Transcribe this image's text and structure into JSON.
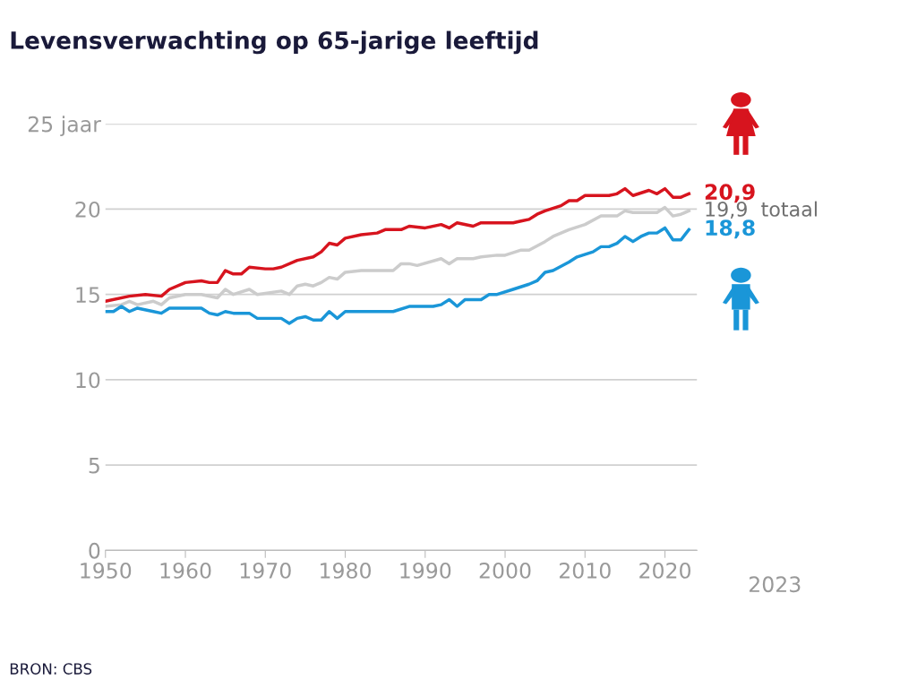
{
  "chart_data": {
    "type": "line",
    "title": "Levensverwachting op 65-jarige leeftijd",
    "xlim": [
      1950,
      2024
    ],
    "xticks": [
      1950,
      1960,
      1970,
      1980,
      1990,
      2000,
      2010,
      2020
    ],
    "ylim": [
      0,
      25
    ],
    "yticks": [
      0,
      5,
      10,
      15,
      20,
      {
        "value": 25,
        "label": "25 jaar"
      }
    ],
    "grid": "y",
    "legend": false,
    "marker": "none",
    "line_style": "solid",
    "series": [
      {
        "color": "#d7141e",
        "x": [
          1950,
          1953,
          1955,
          1957,
          1958,
          1960,
          1962,
          1963,
          1964,
          1965,
          1966,
          1967,
          1968,
          1970,
          1971,
          1972,
          1974,
          1976,
          1977,
          1978,
          1979,
          1980,
          1982,
          1984,
          1985,
          1987,
          1988,
          1990,
          1992,
          1993,
          1994,
          1996,
          1997,
          2001,
          2002,
          2003,
          2004,
          2005,
          2007,
          2008,
          2009,
          2010,
          2013,
          2014,
          2015,
          2016,
          2018,
          2019,
          2020,
          2021,
          2022,
          2023
        ],
        "values": [
          14.6,
          14.9,
          15.0,
          14.9,
          15.3,
          15.7,
          15.8,
          15.7,
          15.7,
          16.4,
          16.2,
          16.2,
          16.6,
          16.5,
          16.5,
          16.6,
          17.0,
          17.2,
          17.5,
          18.0,
          17.9,
          18.3,
          18.5,
          18.6,
          18.8,
          18.8,
          19.0,
          18.9,
          19.1,
          18.9,
          19.2,
          19.0,
          19.2,
          19.2,
          19.3,
          19.4,
          19.7,
          19.9,
          20.2,
          20.5,
          20.5,
          20.8,
          20.8,
          20.9,
          21.2,
          20.8,
          21.1,
          20.9,
          21.2,
          20.7,
          20.7,
          20.9
        ],
        "value_labels": [
          null,
          null,
          null,
          null,
          null,
          null,
          null,
          null,
          null,
          null,
          null,
          null,
          null,
          null,
          null,
          null,
          null,
          null,
          null,
          null,
          null,
          null,
          null,
          null,
          null,
          null,
          null,
          null,
          null,
          null,
          null,
          null,
          null,
          null,
          null,
          null,
          null,
          null,
          null,
          null,
          null,
          null,
          null,
          null,
          null,
          null,
          null,
          null,
          null,
          null,
          null,
          "20,9"
        ]
      },
      {
        "name": "totaal",
        "color": "#cccccc",
        "x": [
          1950,
          1952,
          1953,
          1954,
          1956,
          1957,
          1958,
          1960,
          1962,
          1964,
          1965,
          1966,
          1968,
          1969,
          1972,
          1973,
          1974,
          1975,
          1976,
          1977,
          1978,
          1979,
          1980,
          1982,
          1986,
          1987,
          1988,
          1989,
          1992,
          1993,
          1994,
          1996,
          1997,
          1999,
          2000,
          2002,
          2003,
          2005,
          2006,
          2008,
          2010,
          2012,
          2014,
          2015,
          2016,
          2017,
          2018,
          2019,
          2020,
          2021,
          2022,
          2023
        ],
        "values": [
          14.3,
          14.4,
          14.6,
          14.4,
          14.6,
          14.4,
          14.8,
          15.0,
          15.0,
          14.8,
          15.3,
          15.0,
          15.3,
          15.0,
          15.2,
          15.0,
          15.5,
          15.6,
          15.5,
          15.7,
          16.0,
          15.9,
          16.3,
          16.4,
          16.4,
          16.8,
          16.8,
          16.7,
          17.1,
          16.8,
          17.1,
          17.1,
          17.2,
          17.3,
          17.3,
          17.6,
          17.6,
          18.1,
          18.4,
          18.8,
          19.1,
          19.6,
          19.6,
          19.9,
          19.8,
          19.8,
          19.8,
          19.8,
          20.1,
          19.6,
          19.7,
          19.9
        ],
        "value_labels": [
          null,
          null,
          null,
          null,
          null,
          null,
          null,
          null,
          null,
          null,
          null,
          null,
          null,
          null,
          null,
          null,
          null,
          null,
          null,
          null,
          null,
          null,
          null,
          null,
          null,
          null,
          null,
          null,
          null,
          null,
          null,
          null,
          null,
          null,
          null,
          null,
          null,
          null,
          null,
          null,
          null,
          null,
          null,
          null,
          null,
          null,
          null,
          null,
          null,
          null,
          null,
          "19,9"
        ]
      },
      {
        "color": "#1a96d8",
        "x": [
          1950,
          1951,
          1952,
          1953,
          1954,
          1956,
          1957,
          1958,
          1962,
          1963,
          1964,
          1965,
          1966,
          1968,
          1969,
          1972,
          1973,
          1974,
          1975,
          1976,
          1977,
          1978,
          1979,
          1980,
          1986,
          1988,
          1991,
          1992,
          1993,
          1994,
          1995,
          1997,
          1998,
          1999,
          2001,
          2003,
          2004,
          2005,
          2006,
          2008,
          2009,
          2011,
          2012,
          2013,
          2014,
          2015,
          2016,
          2017,
          2018,
          2019,
          2020,
          2021,
          2022,
          2023
        ],
        "values": [
          14.0,
          14.0,
          14.3,
          14.0,
          14.2,
          14.0,
          13.9,
          14.2,
          14.2,
          13.9,
          13.8,
          14.0,
          13.9,
          13.9,
          13.6,
          13.6,
          13.3,
          13.6,
          13.7,
          13.5,
          13.5,
          14.0,
          13.6,
          14.0,
          14.0,
          14.3,
          14.3,
          14.4,
          14.7,
          14.3,
          14.7,
          14.7,
          15.0,
          15.0,
          15.3,
          15.6,
          15.8,
          16.3,
          16.4,
          16.9,
          17.2,
          17.5,
          17.8,
          17.8,
          18.0,
          18.4,
          18.1,
          18.4,
          18.6,
          18.6,
          18.9,
          18.2,
          18.2,
          18.8
        ],
        "value_labels": [
          null,
          null,
          null,
          null,
          null,
          null,
          null,
          null,
          null,
          null,
          null,
          null,
          null,
          null,
          null,
          null,
          null,
          null,
          null,
          null,
          null,
          null,
          null,
          null,
          null,
          null,
          null,
          null,
          null,
          null,
          null,
          null,
          null,
          null,
          null,
          null,
          null,
          null,
          null,
          null,
          null,
          null,
          null,
          null,
          null,
          null,
          null,
          null,
          null,
          null,
          null,
          null,
          null,
          "18,8"
        ]
      }
    ],
    "annotations": [
      "2023",
      "BRON: CBS"
    ]
  }
}
